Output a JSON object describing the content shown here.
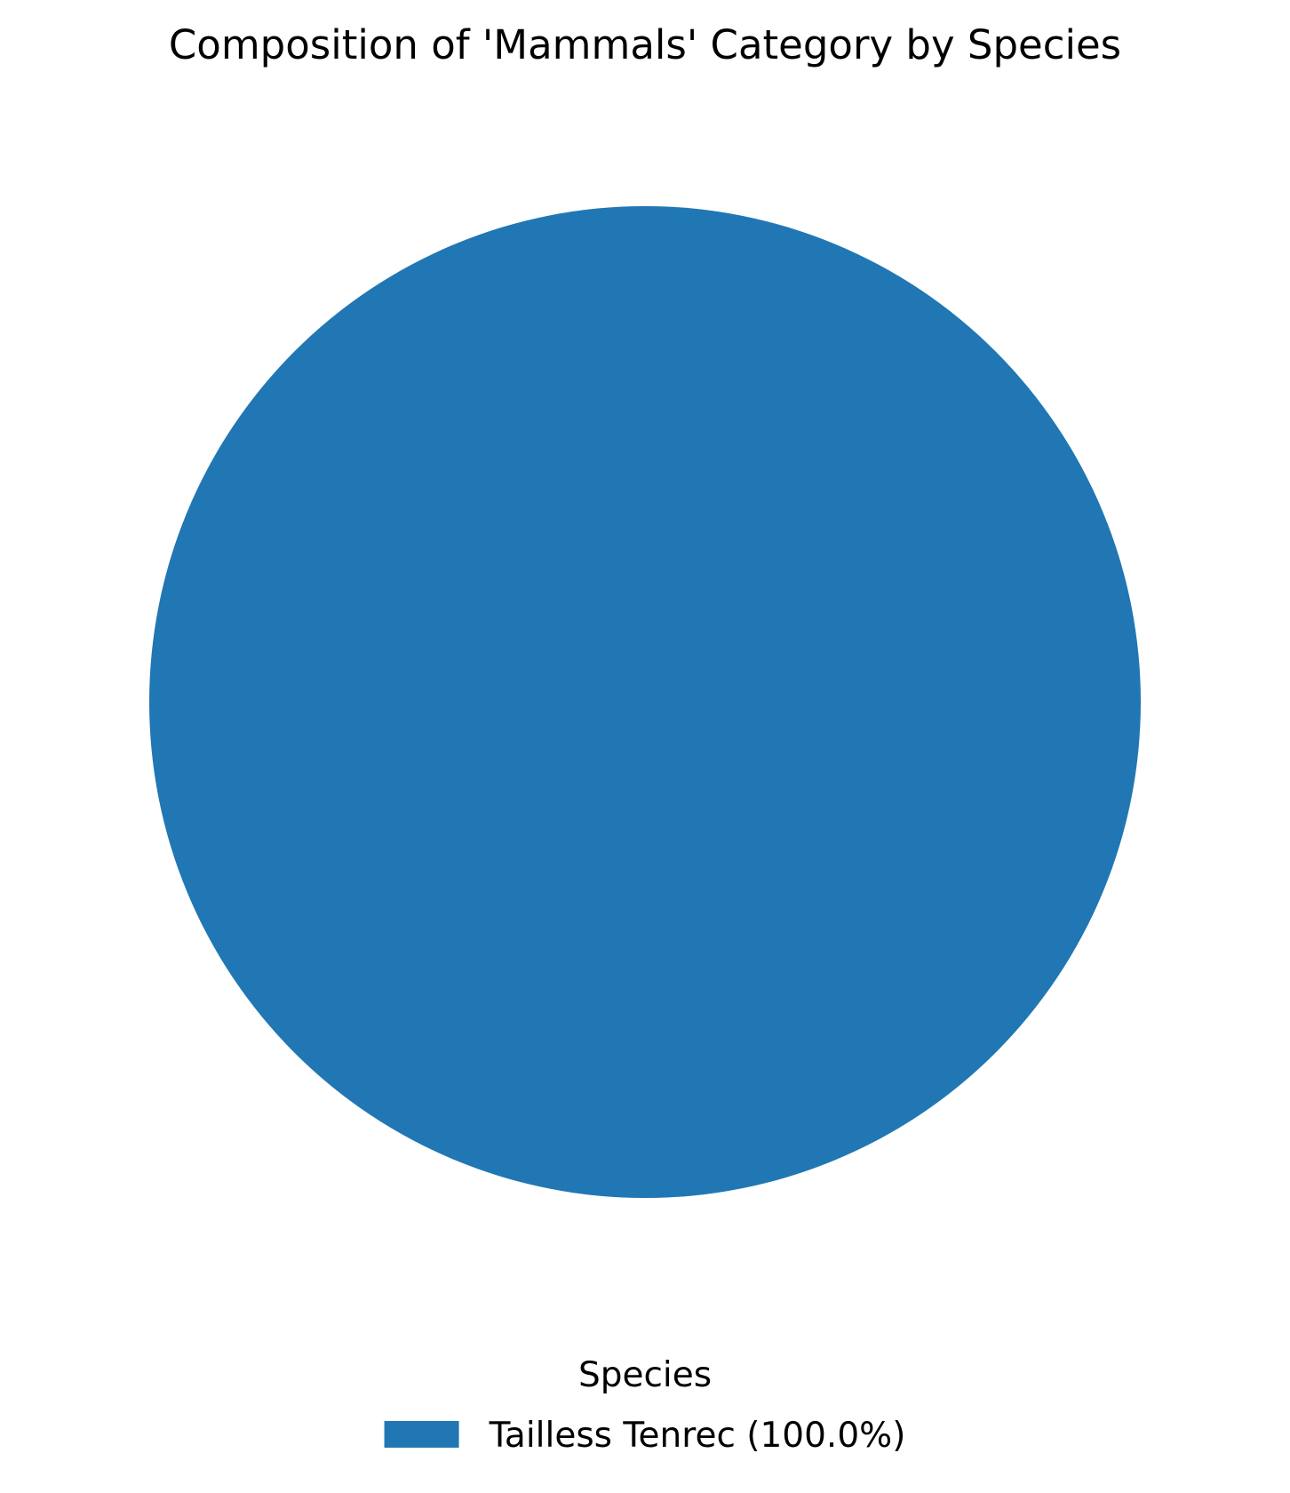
{
  "chart_data": {
    "type": "pie",
    "title": "Composition of 'Mammals' Category by Species",
    "categories": [
      "Tailless Tenrec"
    ],
    "values": [
      100.0
    ],
    "value_unit": "%",
    "colors": [
      "#2077b4"
    ],
    "legend": {
      "title": "Species",
      "placement": "bottom-center",
      "entries": [
        "Tailless Tenrec (100.0%)"
      ]
    }
  }
}
